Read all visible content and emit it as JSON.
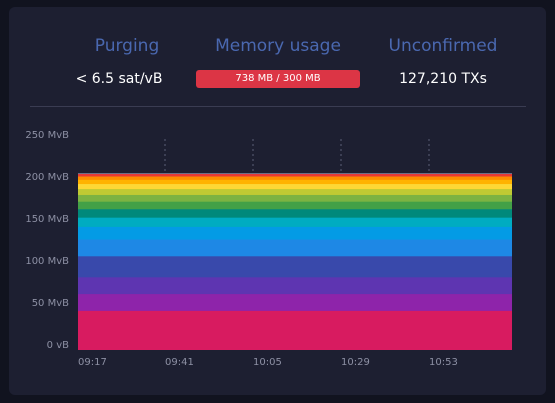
{
  "stats": {
    "purging": {
      "label": "Purging",
      "value": "< 6.5 sat/vB"
    },
    "memory": {
      "label": "Memory usage",
      "value": "738 MB / 300 MB",
      "fill_fraction": 1.0
    },
    "unconfirmed": {
      "label": "Unconfirmed",
      "value": "127,210 TXs"
    }
  },
  "chart_data": {
    "type": "area",
    "stacked": true,
    "y_tick_labels": [
      "250 MvB",
      "200 MvB",
      "150 MvB",
      "100 MvB",
      "50 MvB",
      "0 vB"
    ],
    "x_tick_labels": [
      "09:17",
      "09:41",
      "10:05",
      "10:29",
      "10:53"
    ],
    "ylim": [
      0,
      250
    ],
    "grid": "dotted vertical lines",
    "bands": [
      {
        "value": 40,
        "color": "#d81b60"
      },
      {
        "value": 20,
        "color": "#8e24aa"
      },
      {
        "value": 20,
        "color": "#5e35b1"
      },
      {
        "value": 25,
        "color": "#3949ab"
      },
      {
        "value": 20,
        "color": "#1e88e5"
      },
      {
        "value": 15,
        "color": "#039be5"
      },
      {
        "value": 11,
        "color": "#00acc1"
      },
      {
        "value": 10,
        "color": "#00897b"
      },
      {
        "value": 9,
        "color": "#43a047"
      },
      {
        "value": 8,
        "color": "#7cb342"
      },
      {
        "value": 7,
        "color": "#c0ca33"
      },
      {
        "value": 6,
        "color": "#fdd835"
      },
      {
        "value": 5,
        "color": "#ffb300"
      },
      {
        "value": 4,
        "color": "#fb8c00"
      },
      {
        "value": 3,
        "color": "#e53935"
      }
    ],
    "top_total": 203
  }
}
